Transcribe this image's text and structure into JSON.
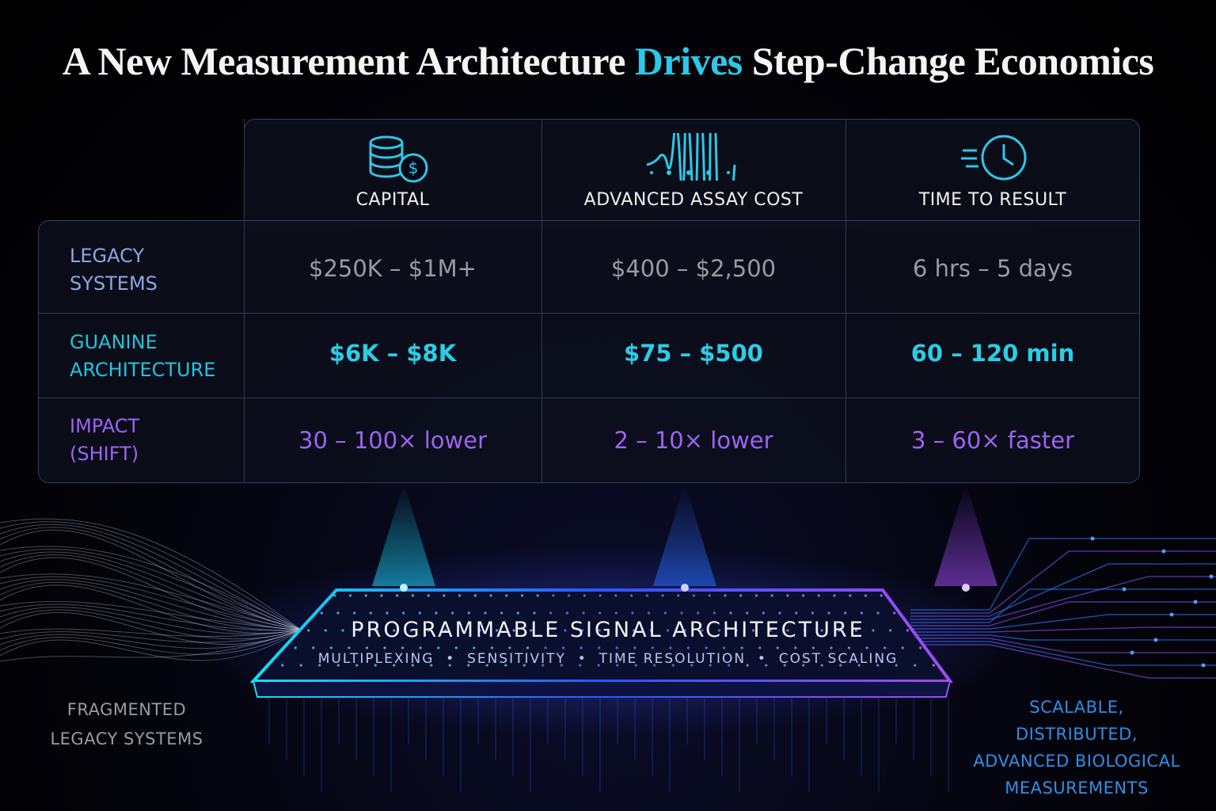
{
  "title": {
    "before": "A New Measurement Architecture",
    "highlight": "Drives",
    "after": "Step-Change Economics"
  },
  "table": {
    "columns": [
      "CAPITAL",
      "ADVANCED ASSAY COST",
      "TIME TO RESULT"
    ],
    "rows": [
      {
        "label": "LEGACY SYSTEMS",
        "cells": [
          "$250K – $1M+",
          "$400 – $2,500",
          "6 hrs – 5 days"
        ]
      },
      {
        "label": "GUANINE ARCHITECTURE",
        "cells": [
          "$6K – $8K",
          "$75 – $500",
          "60 – 120 min"
        ]
      },
      {
        "label": "IMPACT (SHIFT)",
        "cells": [
          "30 – 100× lower",
          "2 – 10× lower",
          "3 – 60× faster"
        ]
      }
    ]
  },
  "platform": {
    "title": "PROGRAMMABLE SIGNAL ARCHITECTURE",
    "features": [
      "MULTIPLEXING",
      "SENSITIVITY",
      "TIME RESOLUTION",
      "COST SCALING"
    ]
  },
  "left_label": "FRAGMENTED LEGACY SYSTEMS",
  "right_label": "SCALABLE, DISTRIBUTED, ADVANCED BIOLOGICAL MEASUREMENTS"
}
